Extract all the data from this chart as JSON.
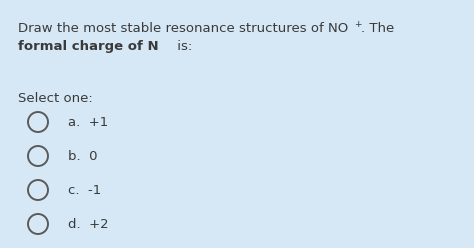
{
  "background_color": "#d6e8f5",
  "text_color": "#3a3a3a",
  "circle_edge_color": "#5a5a5a",
  "options": [
    "a.  +1",
    "b.  0",
    "c.  -1",
    "d.  +2"
  ],
  "font_size_body": 9.5,
  "font_size_super": 6.5,
  "font_size_options": 9.5,
  "font_size_select": 9.5
}
